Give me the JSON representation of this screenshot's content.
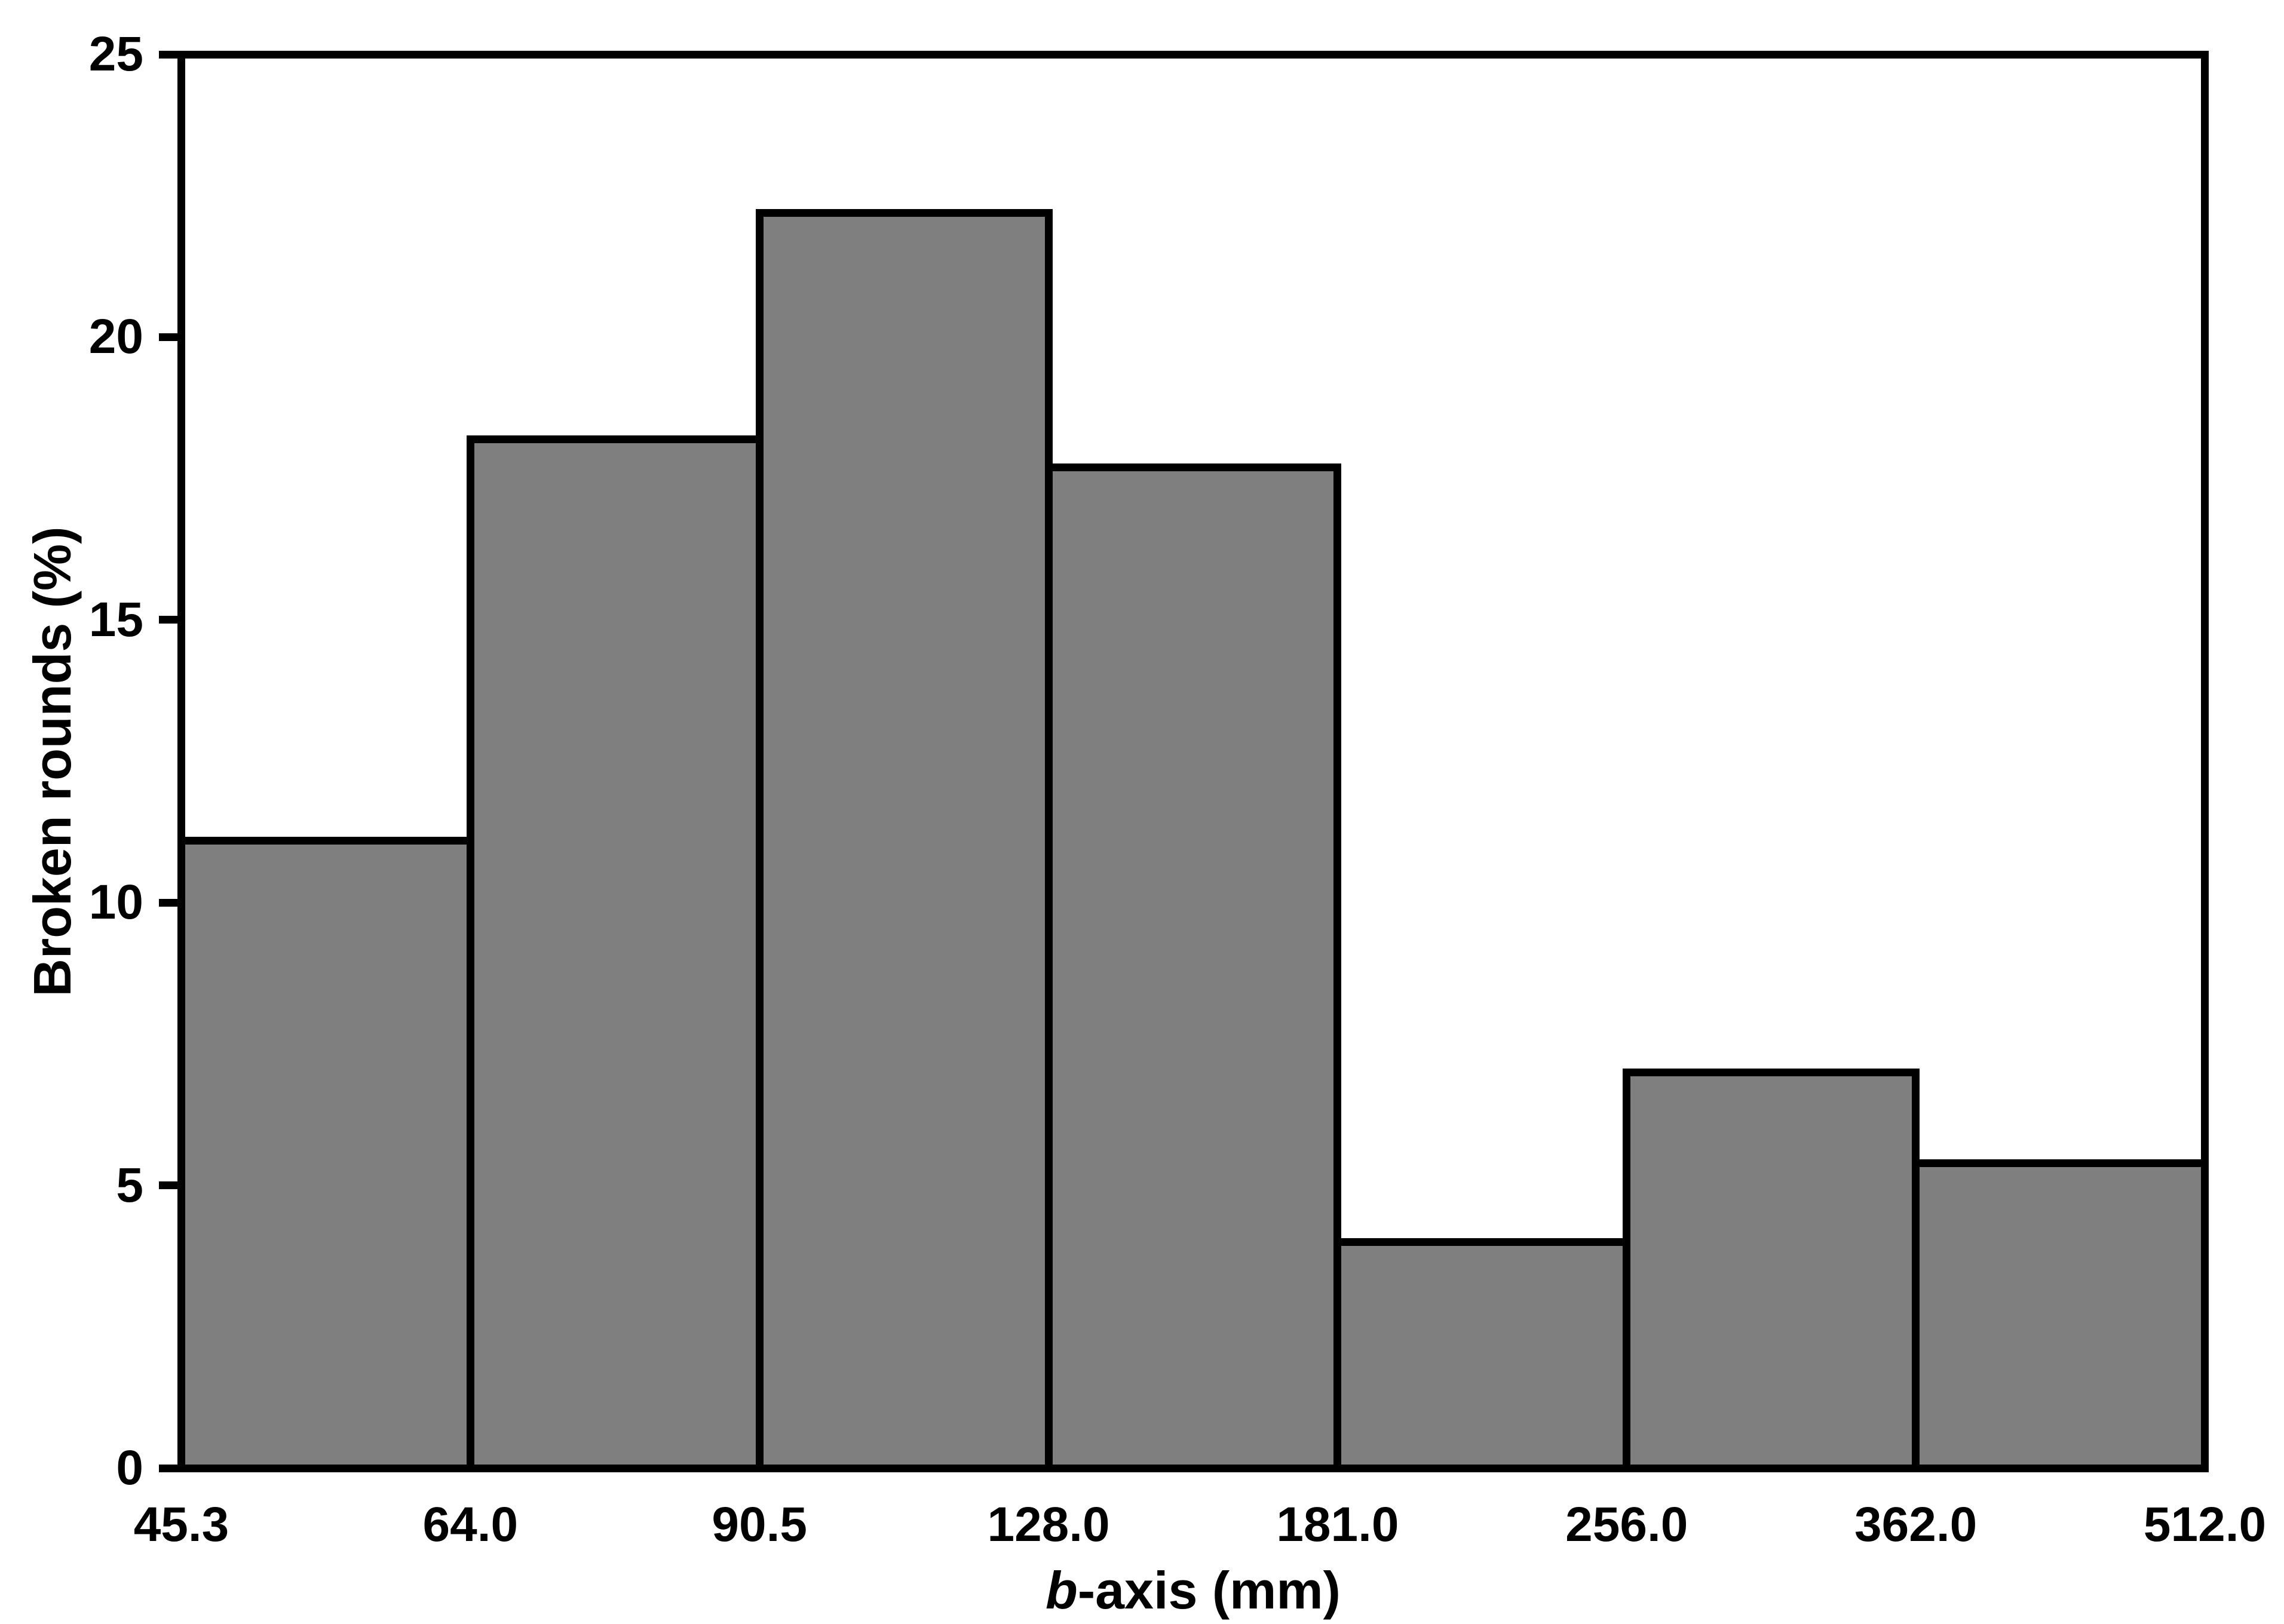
{
  "chart_data": {
    "type": "bar",
    "subtype": "histogram",
    "title": "",
    "ylabel": "Broken rounds (%)",
    "xlabel": "b-axis (mm)",
    "xlabel_italic": "b",
    "xlabel_rest": "-axis (mm)",
    "x_tick_labels": [
      "45.3",
      "64.0",
      "90.5",
      "128.0",
      "181.0",
      "256.0",
      "362.0",
      "512.0"
    ],
    "bin_edges_mm": [
      45.3,
      64.0,
      90.5,
      128.0,
      181.0,
      256.0,
      362.0,
      512.0
    ],
    "values": [
      11.1,
      18.2,
      22.2,
      17.7,
      4.0,
      7.0,
      5.4
    ],
    "y_ticks": [
      0,
      5,
      10,
      15,
      20,
      25
    ],
    "ylim": [
      0,
      25
    ],
    "grid": "off",
    "legend": "none",
    "frame": "full-box",
    "bar_fill_color": "#7F7F7F",
    "bar_border_color": "#000000",
    "axis_color": "#000000",
    "background_color": "#FFFFFF"
  }
}
